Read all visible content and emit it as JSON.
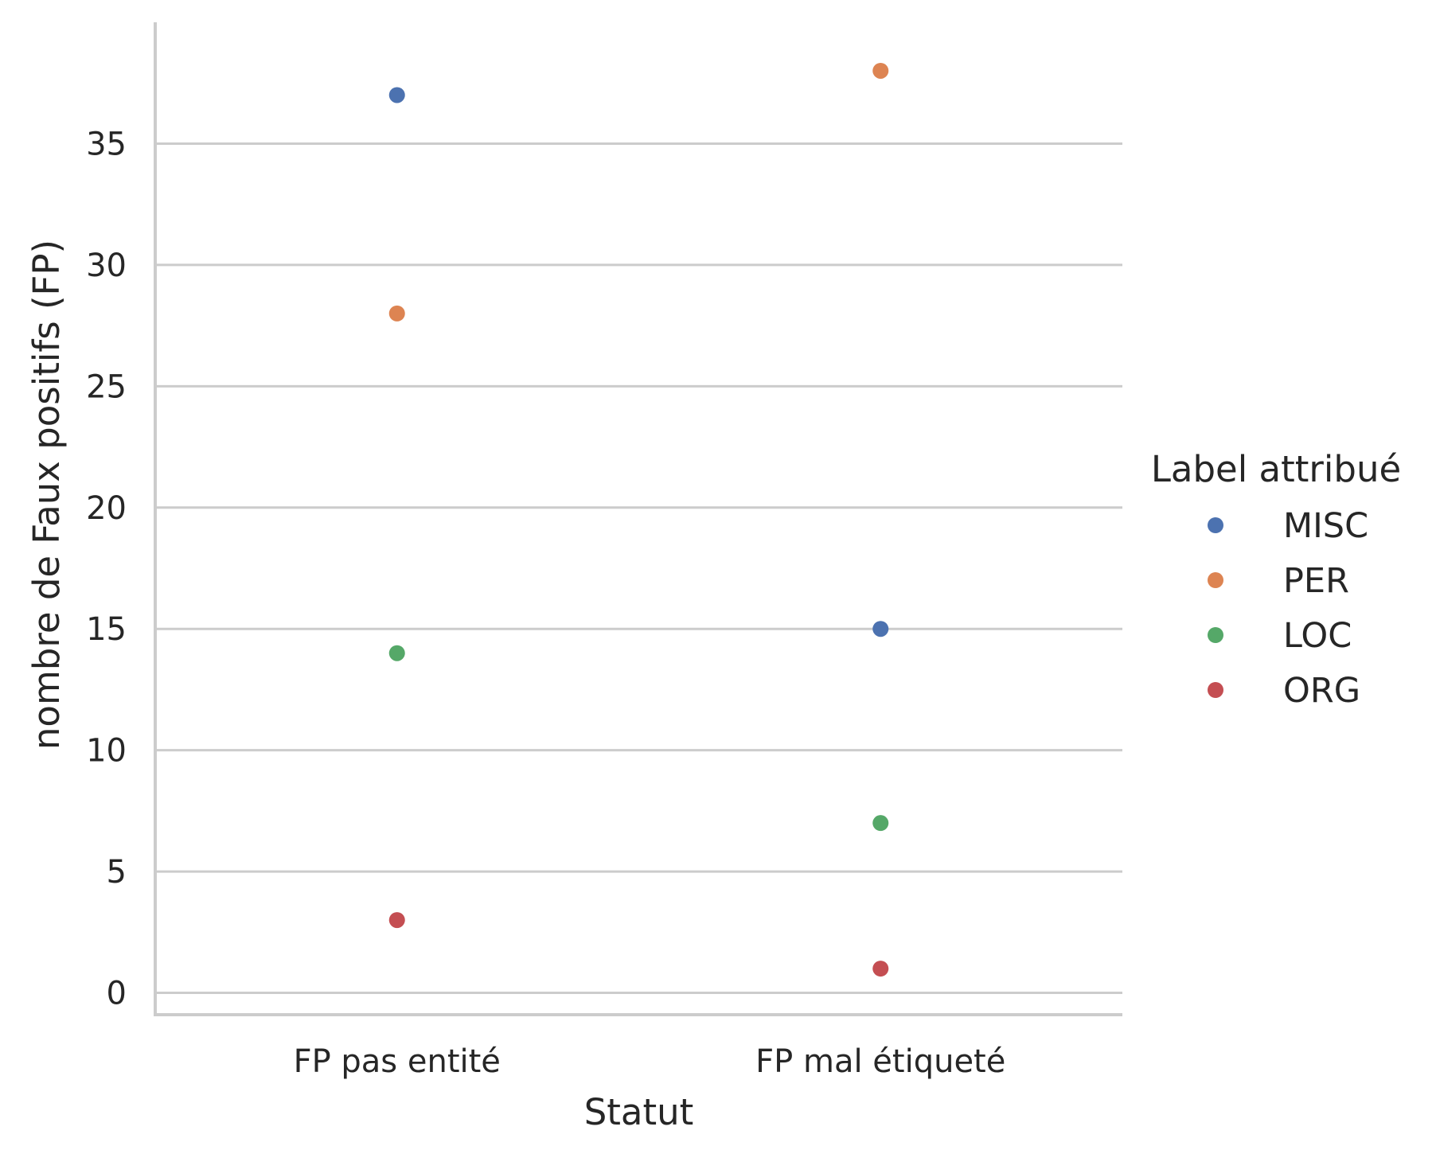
{
  "chart_data": {
    "type": "scatter",
    "xlabel": "Statut",
    "ylabel": "nombre de Faux positifs (FP)",
    "categories": [
      "FP pas entité",
      "FP mal étiqueté"
    ],
    "yticks": [
      0,
      5,
      10,
      15,
      20,
      25,
      30,
      35
    ],
    "ylim": [
      -0.9,
      40
    ],
    "grid": "horizontal",
    "legend": {
      "title": "Label attribué",
      "placement": "right"
    },
    "series": [
      {
        "name": "MISC",
        "color": "#4c72b0",
        "values": [
          37,
          15
        ]
      },
      {
        "name": "PER",
        "color": "#dd8452",
        "values": [
          28,
          38
        ]
      },
      {
        "name": "LOC",
        "color": "#55a868",
        "values": [
          14,
          7
        ]
      },
      {
        "name": "ORG",
        "color": "#c44e52",
        "values": [
          3,
          1
        ]
      }
    ]
  },
  "colors": {
    "grid": "#cccccc",
    "spine": "#cccccc",
    "text": "#262626"
  }
}
